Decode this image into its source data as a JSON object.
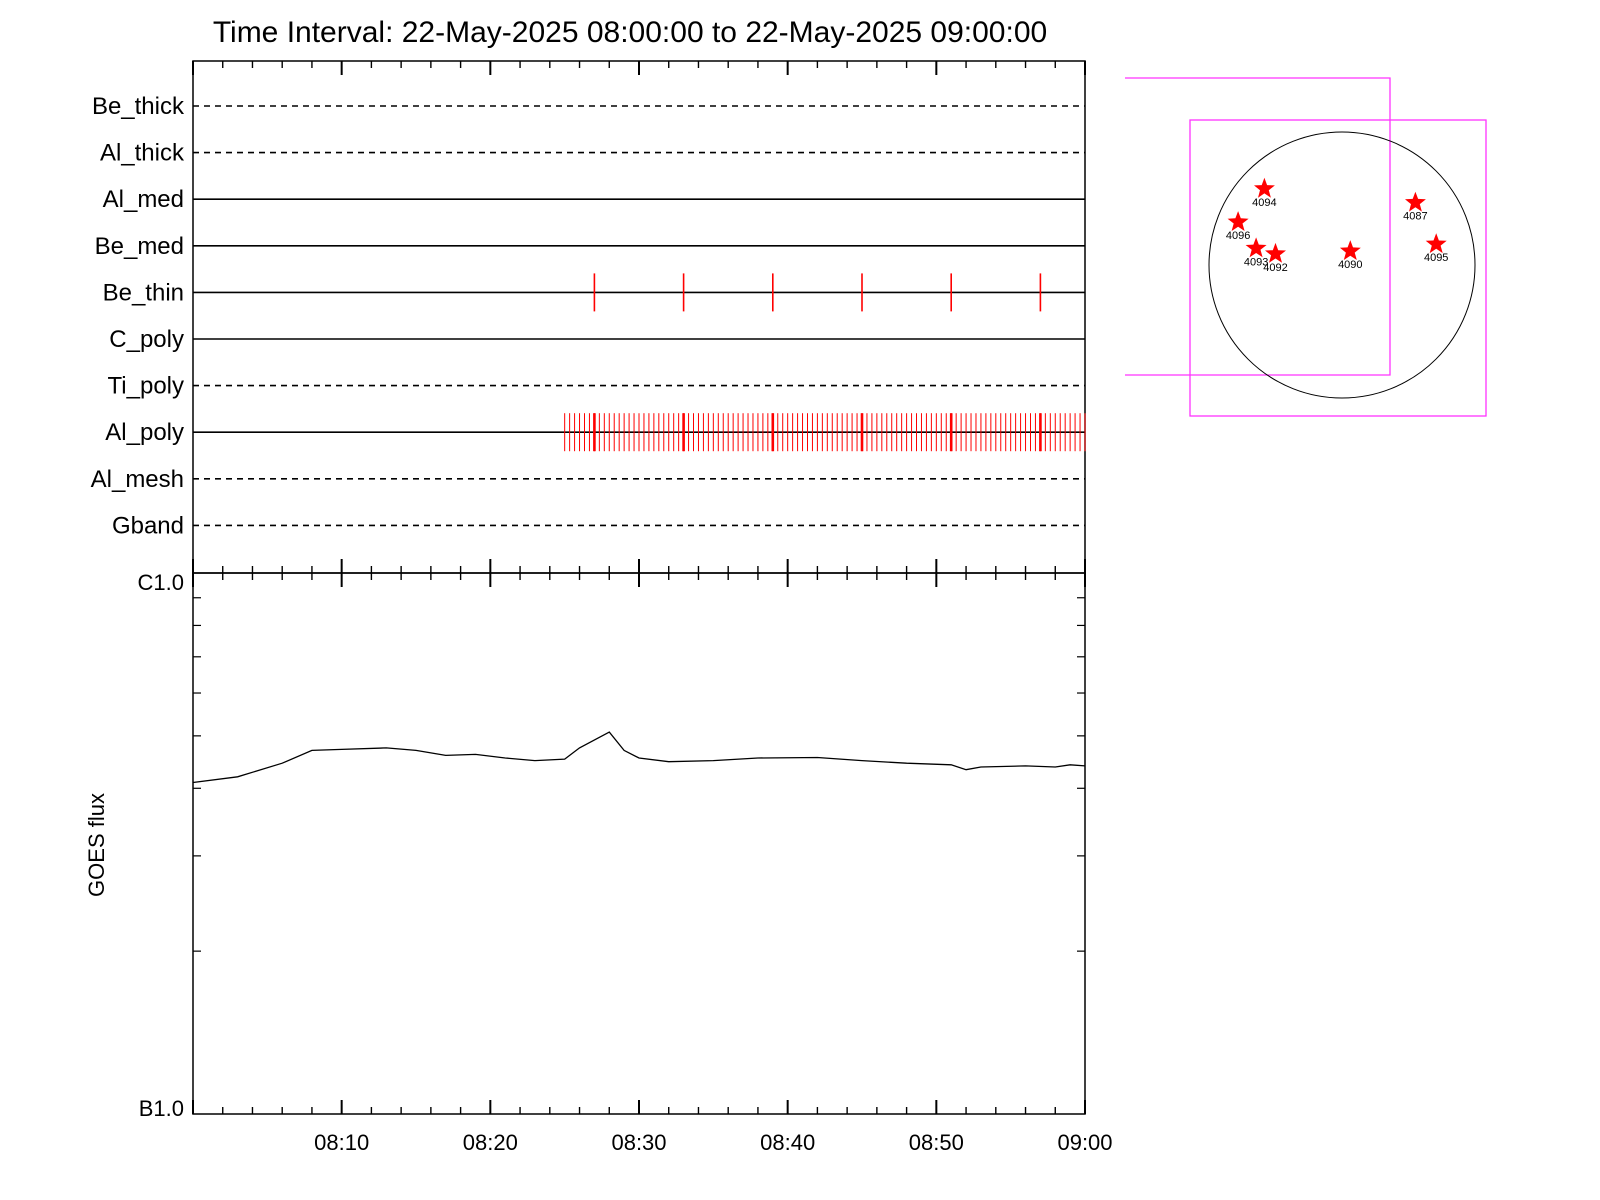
{
  "chart_data": [
    {
      "type": "timeline",
      "title": "Time Interval: 22-May-2025 08:00:00 to 22-May-2025 09:00:00",
      "xlim": [
        "08:00",
        "09:00"
      ],
      "rows": [
        {
          "name": "Be_thick",
          "style": "dashed",
          "events": []
        },
        {
          "name": "Al_thick",
          "style": "dashed",
          "events": []
        },
        {
          "name": "Al_med",
          "style": "solid",
          "events": []
        },
        {
          "name": "Be_med",
          "style": "solid",
          "events": []
        },
        {
          "name": "Be_thin",
          "style": "solid",
          "events": [
            "08:27:00",
            "08:33:00",
            "08:39:00",
            "08:45:00",
            "08:51:00",
            "08:57:00"
          ]
        },
        {
          "name": "C_poly",
          "style": "solid",
          "events": []
        },
        {
          "name": "Ti_poly",
          "style": "dashed",
          "events": []
        },
        {
          "name": "Al_poly",
          "style": "solid",
          "event_start": "08:25:00",
          "event_end": "09:00:00",
          "event_cadence_s": 20,
          "major_events": [
            "08:27:00",
            "08:33:00",
            "08:39:00",
            "08:45:00",
            "08:51:00",
            "08:57:00"
          ]
        },
        {
          "name": "Al_mesh",
          "style": "dashed",
          "events": []
        },
        {
          "name": "Gband",
          "style": "dashed",
          "events": []
        }
      ]
    },
    {
      "type": "line",
      "ylabel": "GOES flux",
      "yscale": "log",
      "ylim": [
        1e-07,
        1e-06
      ],
      "ytick_labels": [
        "B1.0",
        "C1.0"
      ],
      "xlim": [
        "08:00",
        "09:00"
      ],
      "xtick_labels": [
        "08:10",
        "08:20",
        "08:30",
        "08:40",
        "08:50",
        "09:00"
      ],
      "series": [
        {
          "values": [
            [
              "08:00:00",
              4.1e-07
            ],
            [
              "08:03:00",
              4.2e-07
            ],
            [
              "08:06:00",
              4.45e-07
            ],
            [
              "08:08:00",
              4.7e-07
            ],
            [
              "08:10:00",
              4.72e-07
            ],
            [
              "08:13:00",
              4.75e-07
            ],
            [
              "08:15:00",
              4.7e-07
            ],
            [
              "08:17:00",
              4.6e-07
            ],
            [
              "08:19:00",
              4.62e-07
            ],
            [
              "08:21:00",
              4.55e-07
            ],
            [
              "08:23:00",
              4.5e-07
            ],
            [
              "08:25:00",
              4.53e-07
            ],
            [
              "08:26:00",
              4.75e-07
            ],
            [
              "08:28:00",
              5.08e-07
            ],
            [
              "08:29:00",
              4.7e-07
            ],
            [
              "08:30:00",
              4.55e-07
            ],
            [
              "08:32:00",
              4.48e-07
            ],
            [
              "08:35:00",
              4.5e-07
            ],
            [
              "08:38:00",
              4.55e-07
            ],
            [
              "08:42:00",
              4.56e-07
            ],
            [
              "08:45:00",
              4.5e-07
            ],
            [
              "08:48:00",
              4.45e-07
            ],
            [
              "08:51:00",
              4.42e-07
            ],
            [
              "08:52:00",
              4.33e-07
            ],
            [
              "08:53:00",
              4.38e-07
            ],
            [
              "08:56:00",
              4.4e-07
            ],
            [
              "08:58:00",
              4.38e-07
            ],
            [
              "08:59:00",
              4.42e-07
            ],
            [
              "09:00:00",
              4.4e-07
            ]
          ]
        }
      ]
    },
    {
      "type": "scatter",
      "points": [
        {
          "label": "4094",
          "x": -560,
          "y": 550
        },
        {
          "label": "4096",
          "x": -750,
          "y": 310
        },
        {
          "label": "4093",
          "x": -620,
          "y": 120
        },
        {
          "label": "4092",
          "x": -480,
          "y": 80
        },
        {
          "label": "4090",
          "x": 60,
          "y": 100
        },
        {
          "label": "4087",
          "x": 530,
          "y": 450
        },
        {
          "label": "4095",
          "x": 680,
          "y": 150
        }
      ]
    }
  ],
  "colors": {
    "event_marks": "#ff0000",
    "fov_boxes": "#ff33ff",
    "axes": "#000000",
    "limb": "#000000"
  }
}
